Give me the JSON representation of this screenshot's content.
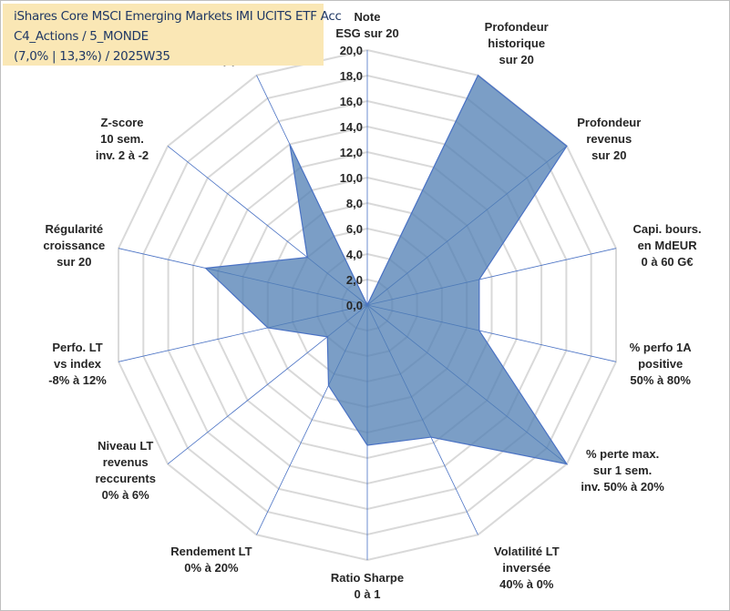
{
  "title": {
    "line1": "iShares Core MSCI Emerging Markets IMI UCITS ETF Acc",
    "line2": "C4_Actions / 5_MONDE",
    "line3": "(7,0% | 13,3%) / 2025W35"
  },
  "chart_data": {
    "type": "radar",
    "ylim": [
      0,
      20
    ],
    "tick_labels": [
      "0,0",
      "2,0",
      "4,0",
      "6,0",
      "8,0",
      "10,0",
      "12,0",
      "14,0",
      "16,0",
      "18,0",
      "20,0"
    ],
    "categories": [
      "Note\nESG sur 20",
      "Profondeur\nhistorique\nsur 20",
      "Profondeur\nrevenus\nsur 20",
      "Capi. bours.\nen MdEUR\n0 à 60 G€",
      "% perfo 1A\npositive\n50% à 80%",
      "% perte max.\nsur 1 sem.\ninv. 50% à 20%",
      "Volatilité LT\ninversée\n40% à 0%",
      "Ratio Sharpe\n0 à 1",
      "Rendement LT\n0% à 20%",
      "Niveau LT\nrevenus\nreccurents\n0% à 6%",
      "Perfo. LT\nvs index\n-8% à 12%",
      "Régularité\ncroissance\nsur 20",
      "Z-score\n10 sem.\ninv. 2 à -2",
      "Momentum\nAchat (20) /\nVente (0)"
    ],
    "series": [
      {
        "values": [
          0,
          20,
          20,
          9,
          9,
          20,
          11.5,
          11,
          7,
          4,
          8,
          13,
          6,
          14
        ]
      }
    ],
    "colors": {
      "fill": "#4f7db3",
      "stroke": "#4a72c4",
      "grid": "#d9d9d9",
      "spoke": "#4a72c4"
    }
  }
}
